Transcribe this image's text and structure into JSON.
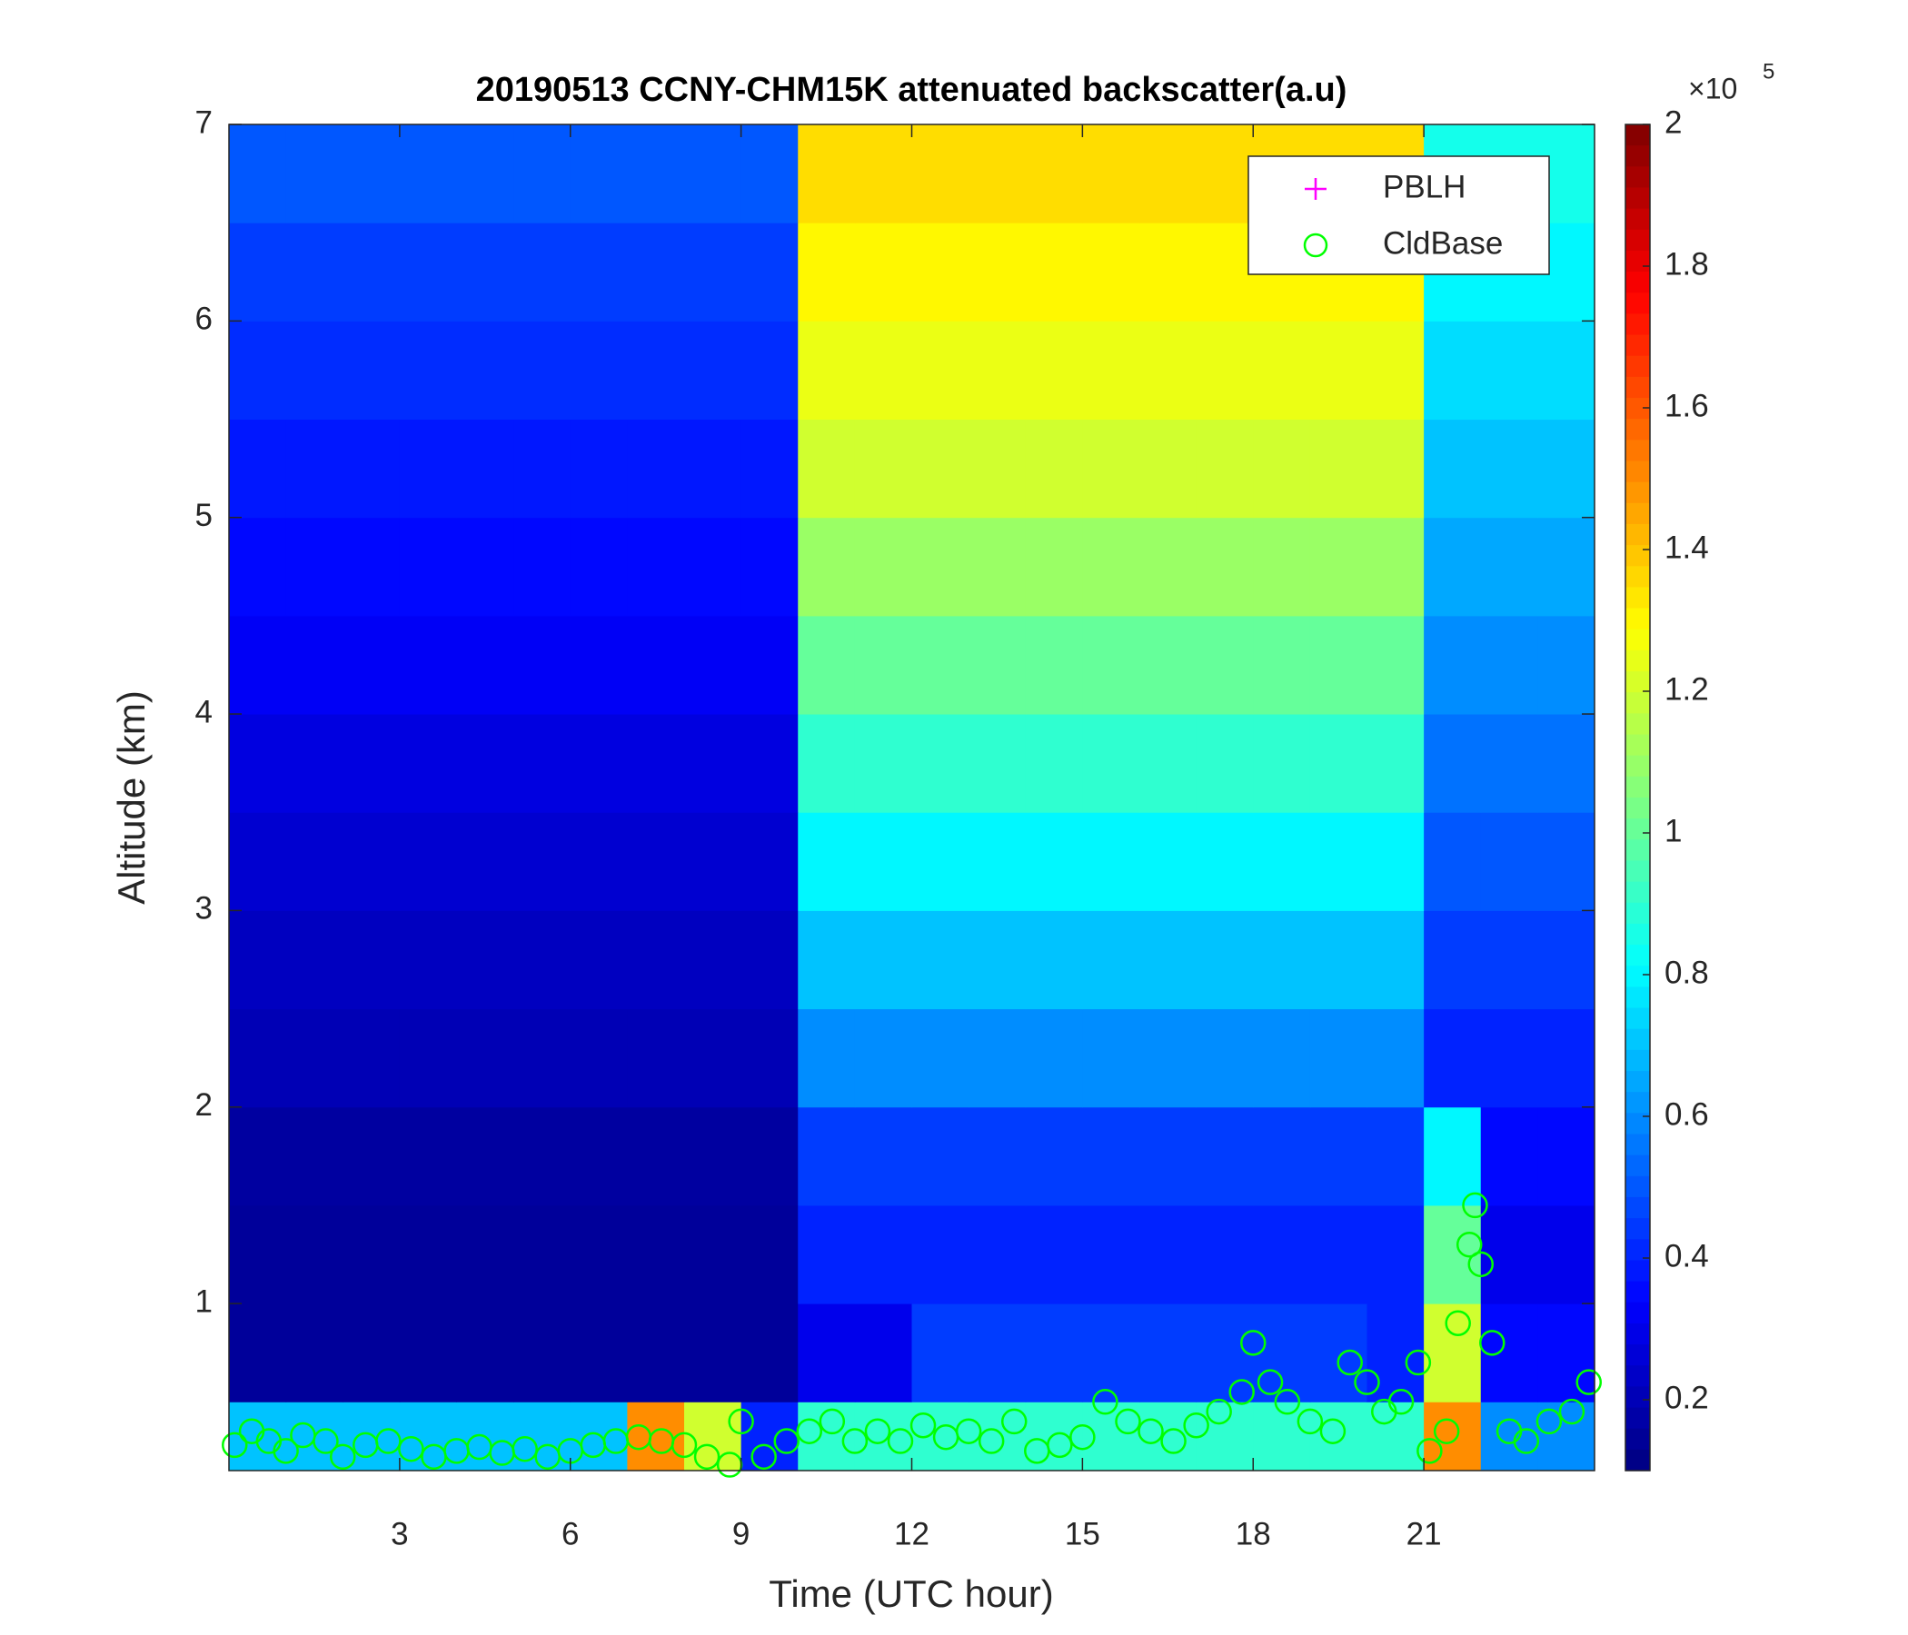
{
  "chart_data": {
    "type": "heatmap",
    "title": "20190513 CCNY-CHM15K attenuated backscatter(a.u)",
    "xlabel": "Time (UTC hour)",
    "ylabel": "Altitude (km)",
    "xlim": [
      0,
      24
    ],
    "ylim": [
      0.15,
      7
    ],
    "xticks": [
      3,
      6,
      9,
      12,
      15,
      18,
      21
    ],
    "yticks": [
      1,
      2,
      3,
      4,
      5,
      6,
      7
    ],
    "colormap": "jet",
    "clim": [
      10000,
      200000
    ],
    "colorbar_ticks": [
      {
        "value": 20000,
        "label": "0.2"
      },
      {
        "value": 40000,
        "label": "0.4"
      },
      {
        "value": 60000,
        "label": "0.6"
      },
      {
        "value": 80000,
        "label": "0.8"
      },
      {
        "value": 100000,
        "label": "1"
      },
      {
        "value": 120000,
        "label": "1.2"
      },
      {
        "value": 140000,
        "label": "1.4"
      },
      {
        "value": 160000,
        "label": "1.6"
      },
      {
        "value": 180000,
        "label": "1.8"
      },
      {
        "value": 200000,
        "label": "2"
      }
    ],
    "colorbar_multiplier": "×10",
    "colorbar_exponent": "5",
    "legend_position": "northeast",
    "heatmap": {
      "x_edges": [
        0,
        1,
        2,
        3,
        4,
        5,
        6,
        7,
        8,
        9,
        10,
        11,
        12,
        13,
        14,
        15,
        16,
        17,
        18,
        19,
        20,
        21,
        22,
        23,
        24
      ],
      "y_edges": [
        0.15,
        0.5,
        1,
        1.5,
        2,
        2.5,
        3,
        3.5,
        4,
        4.5,
        5,
        5.5,
        6,
        6.5,
        7
      ],
      "values": [
        [
          70000,
          70000,
          70000,
          70000,
          70000,
          70000,
          70000,
          150000,
          120000,
          40000,
          90000,
          90000,
          90000,
          90000,
          90000,
          90000,
          90000,
          90000,
          90000,
          90000,
          90000,
          150000,
          60000,
          60000
        ],
        [
          15000,
          15000,
          15000,
          15000,
          15000,
          15000,
          15000,
          15000,
          15000,
          15000,
          30000,
          30000,
          45000,
          45000,
          45000,
          45000,
          45000,
          45000,
          45000,
          45000,
          40000,
          120000,
          35000,
          35000
        ],
        [
          15000,
          15000,
          15000,
          15000,
          15000,
          15000,
          15000,
          15000,
          15000,
          15000,
          40000,
          40000,
          40000,
          40000,
          40000,
          40000,
          40000,
          40000,
          40000,
          40000,
          40000,
          100000,
          30000,
          30000
        ],
        [
          16000,
          16000,
          16000,
          16000,
          16000,
          16000,
          16000,
          16000,
          16000,
          16000,
          45000,
          45000,
          45000,
          45000,
          45000,
          45000,
          45000,
          45000,
          45000,
          45000,
          45000,
          80000,
          35000,
          35000
        ],
        [
          20000,
          20000,
          20000,
          20000,
          20000,
          20000,
          20000,
          20000,
          20000,
          20000,
          60000,
          60000,
          60000,
          60000,
          60000,
          60000,
          60000,
          60000,
          60000,
          60000,
          60000,
          40000,
          40000,
          40000
        ],
        [
          22000,
          22000,
          22000,
          22000,
          22000,
          22000,
          22000,
          22000,
          22000,
          22000,
          70000,
          70000,
          70000,
          70000,
          70000,
          70000,
          70000,
          70000,
          70000,
          70000,
          70000,
          45000,
          45000,
          45000
        ],
        [
          25000,
          25000,
          25000,
          25000,
          25000,
          25000,
          25000,
          25000,
          25000,
          25000,
          80000,
          80000,
          80000,
          80000,
          80000,
          80000,
          80000,
          80000,
          80000,
          80000,
          80000,
          50000,
          50000,
          50000
        ],
        [
          28000,
          28000,
          28000,
          28000,
          28000,
          28000,
          28000,
          28000,
          28000,
          28000,
          90000,
          90000,
          90000,
          90000,
          90000,
          90000,
          90000,
          90000,
          90000,
          90000,
          90000,
          55000,
          55000,
          55000
        ],
        [
          32000,
          32000,
          32000,
          32000,
          32000,
          32000,
          32000,
          32000,
          32000,
          32000,
          100000,
          100000,
          100000,
          100000,
          100000,
          100000,
          100000,
          100000,
          100000,
          100000,
          100000,
          60000,
          60000,
          60000
        ],
        [
          35000,
          35000,
          35000,
          35000,
          35000,
          35000,
          35000,
          35000,
          35000,
          35000,
          110000,
          110000,
          110000,
          110000,
          110000,
          110000,
          110000,
          110000,
          110000,
          110000,
          110000,
          65000,
          65000,
          65000
        ],
        [
          38000,
          38000,
          38000,
          38000,
          38000,
          38000,
          38000,
          38000,
          38000,
          38000,
          120000,
          120000,
          120000,
          120000,
          120000,
          120000,
          120000,
          120000,
          120000,
          120000,
          120000,
          70000,
          70000,
          70000
        ],
        [
          42000,
          42000,
          42000,
          42000,
          42000,
          42000,
          42000,
          42000,
          42000,
          42000,
          125000,
          125000,
          125000,
          125000,
          125000,
          125000,
          125000,
          125000,
          125000,
          125000,
          125000,
          75000,
          75000,
          75000
        ],
        [
          45000,
          45000,
          45000,
          45000,
          45000,
          45000,
          45000,
          45000,
          45000,
          45000,
          130000,
          130000,
          130000,
          130000,
          130000,
          130000,
          130000,
          130000,
          130000,
          130000,
          130000,
          80000,
          80000,
          80000
        ],
        [
          50000,
          50000,
          50000,
          50000,
          50000,
          50000,
          50000,
          50000,
          50000,
          50000,
          135000,
          135000,
          135000,
          135000,
          135000,
          135000,
          135000,
          135000,
          135000,
          135000,
          135000,
          85000,
          85000,
          85000
        ]
      ]
    },
    "series": [
      {
        "name": "PBLH",
        "color": "#ff00ff",
        "marker": "+",
        "x": [],
        "y": []
      },
      {
        "name": "CldBase",
        "color": "#00ff00",
        "marker": "o",
        "x": [
          0.1,
          0.4,
          0.7,
          1.0,
          1.3,
          1.7,
          2.0,
          2.4,
          2.8,
          3.2,
          3.6,
          4.0,
          4.4,
          4.8,
          5.2,
          5.6,
          6.0,
          6.4,
          6.8,
          7.2,
          7.6,
          8.0,
          8.4,
          8.8,
          9.0,
          9.4,
          9.8,
          10.2,
          10.6,
          11.0,
          11.4,
          11.8,
          12.2,
          12.6,
          13.0,
          13.4,
          13.8,
          14.2,
          14.6,
          15.0,
          15.4,
          15.8,
          16.2,
          16.6,
          17.0,
          17.4,
          17.8,
          18.0,
          18.3,
          18.6,
          19.0,
          19.4,
          19.7,
          20.0,
          20.3,
          20.6,
          20.9,
          21.1,
          21.4,
          21.6,
          21.8,
          21.9,
          22.0,
          22.2,
          22.5,
          22.8,
          23.2,
          23.6,
          23.9
        ],
        "y": [
          0.28,
          0.35,
          0.3,
          0.25,
          0.33,
          0.3,
          0.22,
          0.28,
          0.3,
          0.26,
          0.22,
          0.25,
          0.27,
          0.24,
          0.26,
          0.22,
          0.25,
          0.28,
          0.3,
          0.32,
          0.3,
          0.28,
          0.22,
          0.18,
          0.4,
          0.22,
          0.3,
          0.35,
          0.4,
          0.3,
          0.35,
          0.3,
          0.38,
          0.32,
          0.35,
          0.3,
          0.4,
          0.25,
          0.28,
          0.32,
          0.5,
          0.4,
          0.35,
          0.3,
          0.38,
          0.45,
          0.55,
          0.8,
          0.6,
          0.5,
          0.4,
          0.35,
          0.7,
          0.6,
          0.45,
          0.5,
          0.7,
          0.25,
          0.35,
          0.9,
          1.3,
          1.5,
          1.2,
          0.8,
          0.35,
          0.3,
          0.4,
          0.45,
          0.6
        ]
      }
    ]
  }
}
